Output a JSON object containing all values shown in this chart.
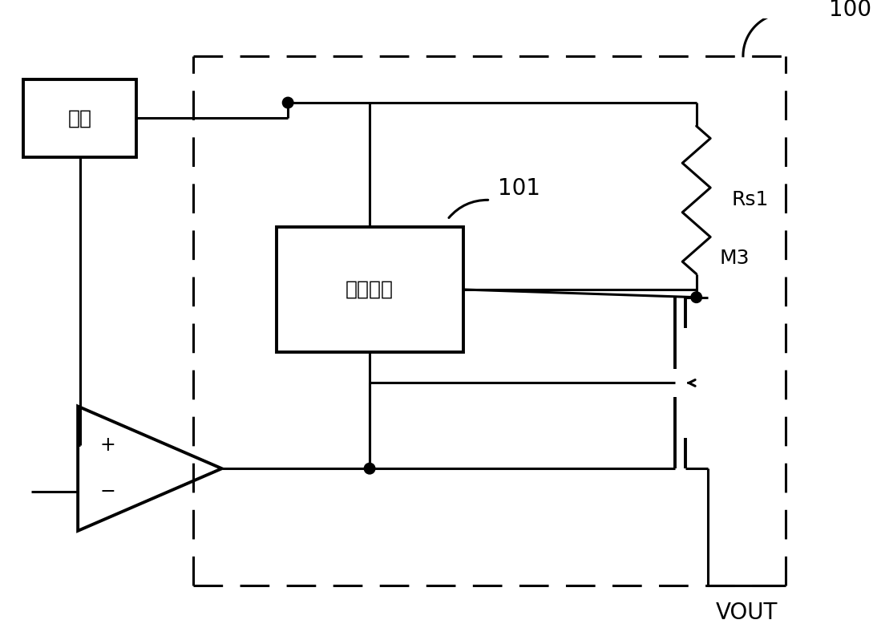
{
  "bg_color": "#ffffff",
  "line_color": "#000000",
  "fig_width": 10.89,
  "fig_height": 7.88,
  "label_100": "100",
  "label_101": "101",
  "label_Rs1": "Rs1",
  "label_M3": "M3",
  "label_VOUT": "VOUT",
  "label_power": "电源",
  "label_switch": "开关元件"
}
